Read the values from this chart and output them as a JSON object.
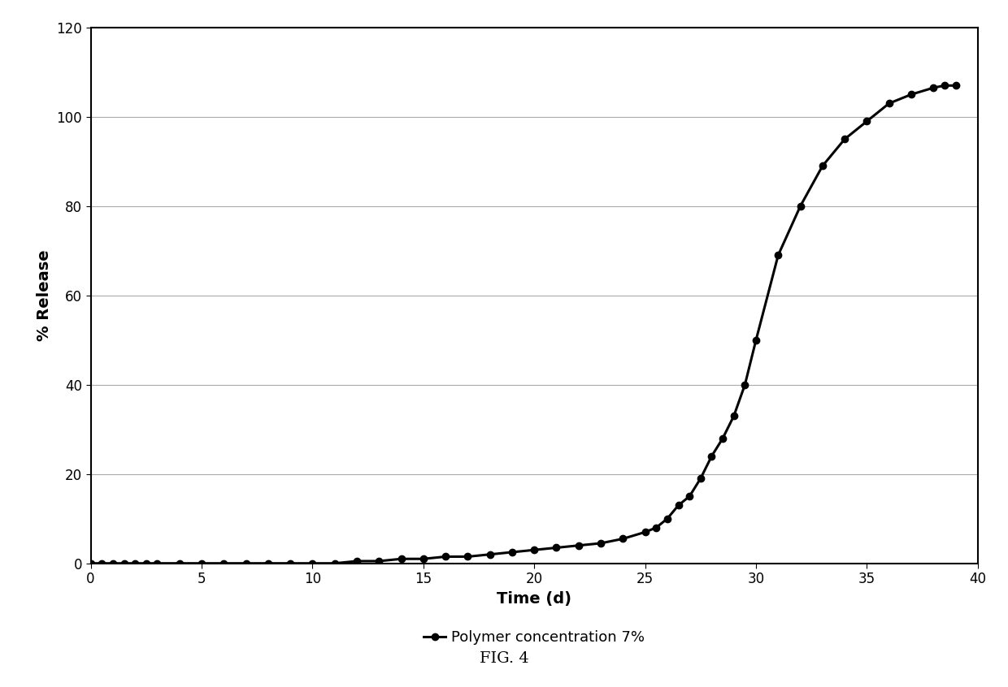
{
  "x": [
    0,
    0.5,
    1,
    1.5,
    2,
    2.5,
    3,
    4,
    5,
    6,
    7,
    8,
    9,
    10,
    11,
    12,
    13,
    14,
    15,
    16,
    17,
    18,
    19,
    20,
    21,
    22,
    23,
    24,
    25,
    25.5,
    26,
    26.5,
    27,
    27.5,
    28,
    28.5,
    29,
    29.5,
    30,
    31,
    32,
    33,
    34,
    35,
    36,
    37,
    38,
    38.5,
    39
  ],
  "y": [
    0,
    0,
    0,
    0,
    0,
    0,
    0,
    0,
    0,
    0,
    0,
    0,
    0,
    0,
    0,
    0.5,
    0.5,
    1,
    1,
    1.5,
    1.5,
    2,
    2.5,
    3,
    3.5,
    4,
    4.5,
    5.5,
    7,
    8,
    10,
    13,
    15,
    19,
    24,
    28,
    33,
    40,
    50,
    69,
    80,
    89,
    95,
    99,
    103,
    105,
    106.5,
    107,
    107
  ],
  "line_color": "#000000",
  "marker_color": "#000000",
  "marker_style": "o",
  "marker_size": 6,
  "line_width": 2.2,
  "xlabel": "Time (d)",
  "ylabel": "% Release",
  "xlim": [
    0,
    40
  ],
  "ylim": [
    0,
    120
  ],
  "xticks": [
    0,
    5,
    10,
    15,
    20,
    25,
    30,
    35,
    40
  ],
  "yticks": [
    0,
    20,
    40,
    60,
    80,
    100,
    120
  ],
  "legend_label_raw": "Polymer concentration 7%",
  "fig_caption": "FIG. 4",
  "background_color": "#ffffff",
  "grid_color": "#aaaaaa",
  "axis_fontsize": 14,
  "tick_fontsize": 12,
  "legend_fontsize": 13,
  "caption_fontsize": 14
}
